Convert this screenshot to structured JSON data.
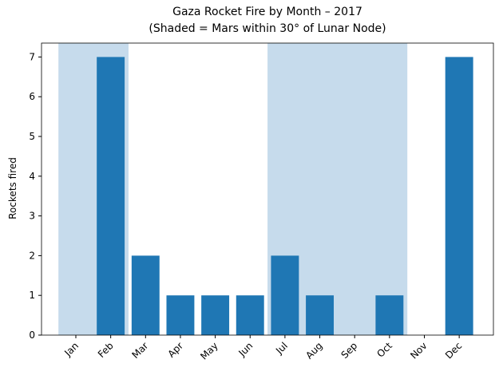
{
  "chart_data": {
    "type": "bar",
    "title": "Gaza Rocket Fire by Month – 2017",
    "subtitle": "(Shaded = Mars within 30° of Lunar Node)",
    "y_label": "Rockets fired",
    "categories": [
      "Jan",
      "Feb",
      "Mar",
      "Apr",
      "May",
      "Jun",
      "Jul",
      "Aug",
      "Sep",
      "Oct",
      "Nov",
      "Dec"
    ],
    "values": [
      0,
      7,
      2,
      1,
      1,
      1,
      2,
      1,
      0,
      1,
      0,
      7
    ],
    "color": "#1f77b4",
    "shaded": [
      true,
      true,
      false,
      false,
      false,
      false,
      true,
      true,
      true,
      true,
      false,
      false
    ],
    "shade_color": "#c6dbec",
    "ylim": [
      0,
      7.35
    ],
    "yticks": [
      0,
      1,
      2,
      3,
      4,
      5,
      6,
      7
    ]
  }
}
